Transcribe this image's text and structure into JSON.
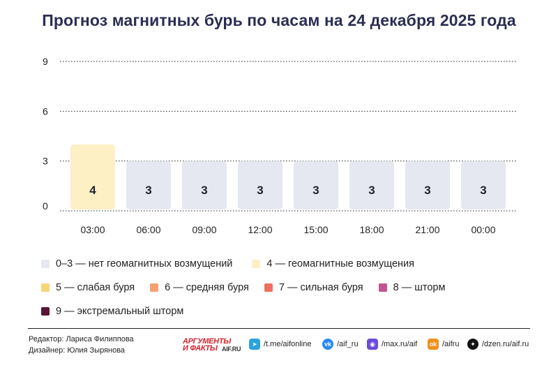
{
  "title": "Прогноз магнитных бурь по часам на 24 декабря 2025 года",
  "chart_data": {
    "type": "bar",
    "categories": [
      "03:00",
      "06:00",
      "09:00",
      "12:00",
      "15:00",
      "18:00",
      "21:00",
      "00:00"
    ],
    "values": [
      4,
      3,
      3,
      3,
      3,
      3,
      3,
      3
    ],
    "bar_colors": [
      "#fdf0c5",
      "#e5e7f1",
      "#e5e7f1",
      "#e5e7f1",
      "#e5e7f1",
      "#e5e7f1",
      "#e5e7f1",
      "#e5e7f1"
    ],
    "yticks": [
      0,
      3,
      6,
      9
    ],
    "ylim": [
      0,
      9
    ],
    "grid": "dotted horizontal",
    "legend_placement": "bottom",
    "xlabel": "",
    "ylabel": ""
  },
  "legend": [
    [
      {
        "label": "0–3 — нет геомагнитных возмущений",
        "color": "#e5e7f1"
      },
      {
        "label": "4 — геомагнитные возмущения",
        "color": "#fdf0c5"
      }
    ],
    [
      {
        "label": "5 — слабая буря",
        "color": "#f9d576"
      },
      {
        "label": "6 — средняя буря",
        "color": "#f7a070"
      },
      {
        "label": "7 — сильная буря",
        "color": "#ee6f62"
      },
      {
        "label": "8 — шторм",
        "color": "#c2538f"
      }
    ],
    [
      {
        "label": "9 — экстремальный шторм",
        "color": "#5a1236"
      }
    ]
  ],
  "credits": {
    "editor": "Редактор: Лариса Филиппова",
    "designer": "Дизайнер: Юлия Зырянова"
  },
  "logo": {
    "line1": "АРГУМЕНТЫ",
    "line2": "И ФАКТЫ",
    "site": "AIF.RU"
  },
  "social": [
    {
      "icon": "telegram-icon",
      "label": "/t.me/aifonline",
      "color": "#2aa3df"
    },
    {
      "icon": "vk-icon",
      "label": "/aif_ru",
      "color": "#2787f5"
    },
    {
      "icon": "max-icon",
      "label": "/max.ru/aif",
      "color": "#6a4bdc"
    },
    {
      "icon": "odnoklassniki-icon",
      "label": "/aifru",
      "color": "#f28e1c"
    },
    {
      "icon": "dzen-icon",
      "label": "/dzen.ru/aif.ru",
      "color": "#111111"
    }
  ]
}
